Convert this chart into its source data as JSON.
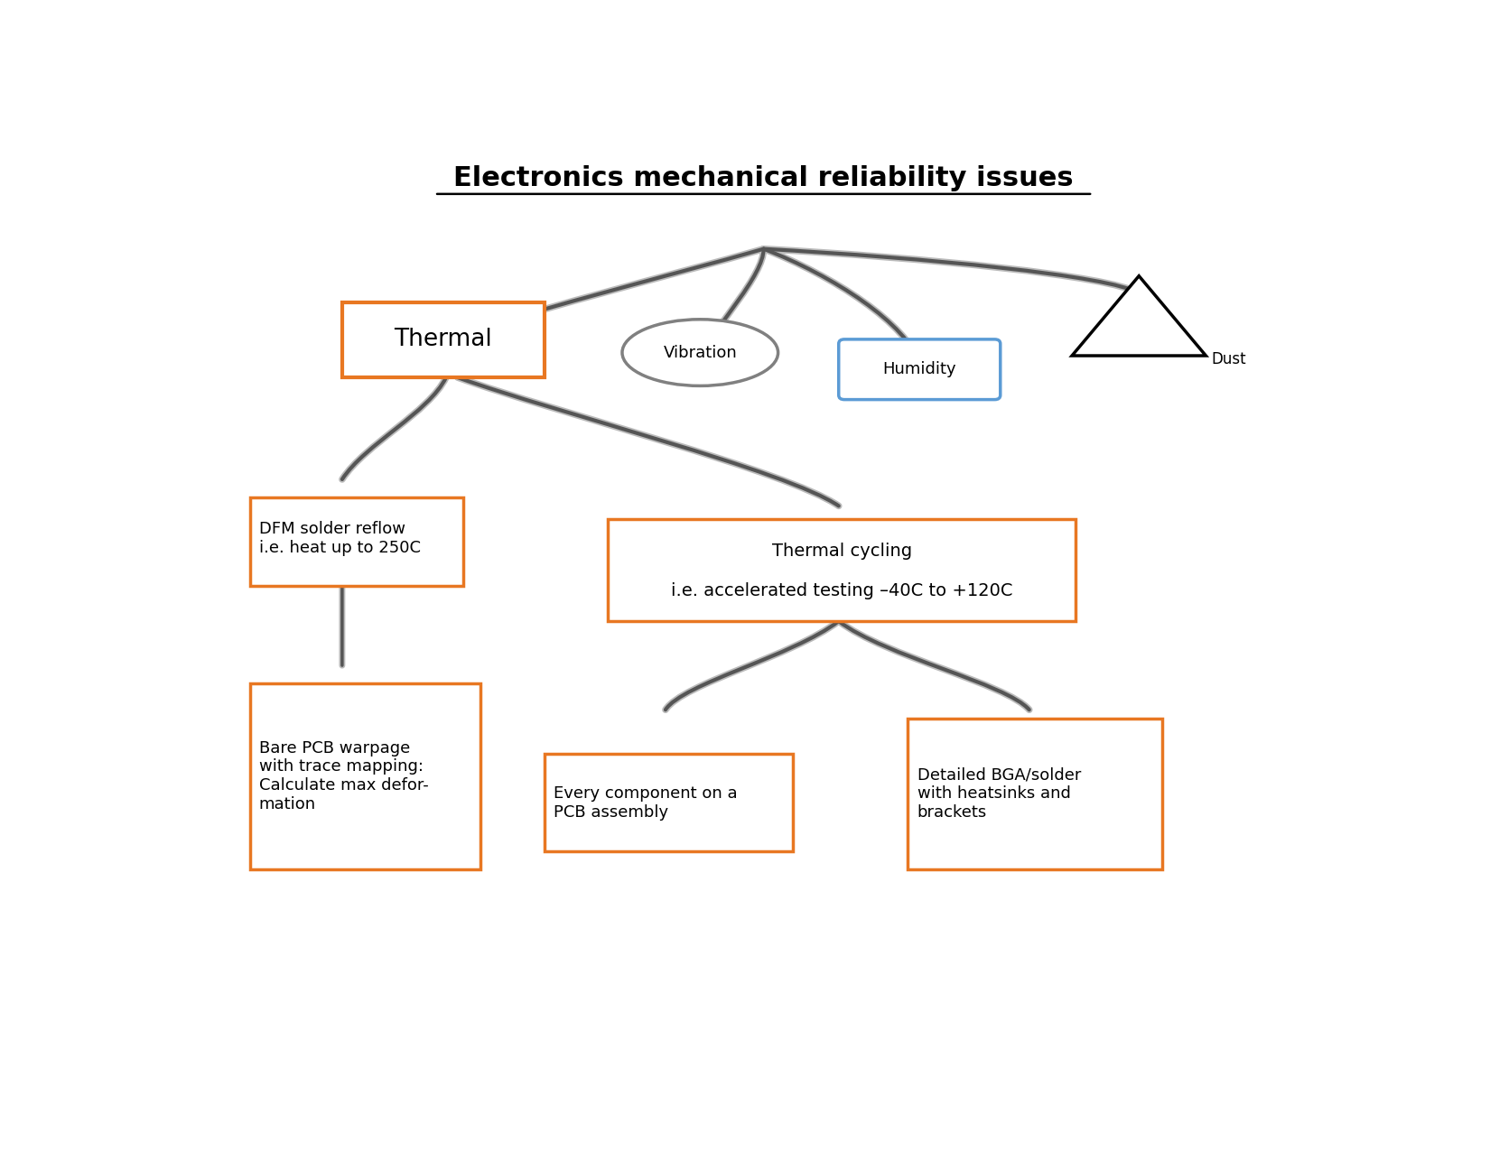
{
  "title": "Electronics mechanical reliability issues",
  "title_fontsize": 22,
  "bg_color": "#ffffff",
  "line_color": "#555555",
  "shadow_color": "#bbbbbb",
  "orange_color": "#E87722",
  "blue_color": "#5B9BD5",
  "gray_color": "#808080",
  "black_color": "#000000",
  "dfm_text": "DFM solder reflow\ni.e. heat up to 250C",
  "tc_text": "Thermal cycling\n\ni.e. accelerated testing –40C to +120C",
  "bare_text": "Bare PCB warpage\nwith trace mapping:\nCalculate max defor-\nmation",
  "ec_text": "Every component on a\nPCB assembly",
  "bga_text": "Detailed BGA/solder\nwith heatsinks and\nbrackets"
}
